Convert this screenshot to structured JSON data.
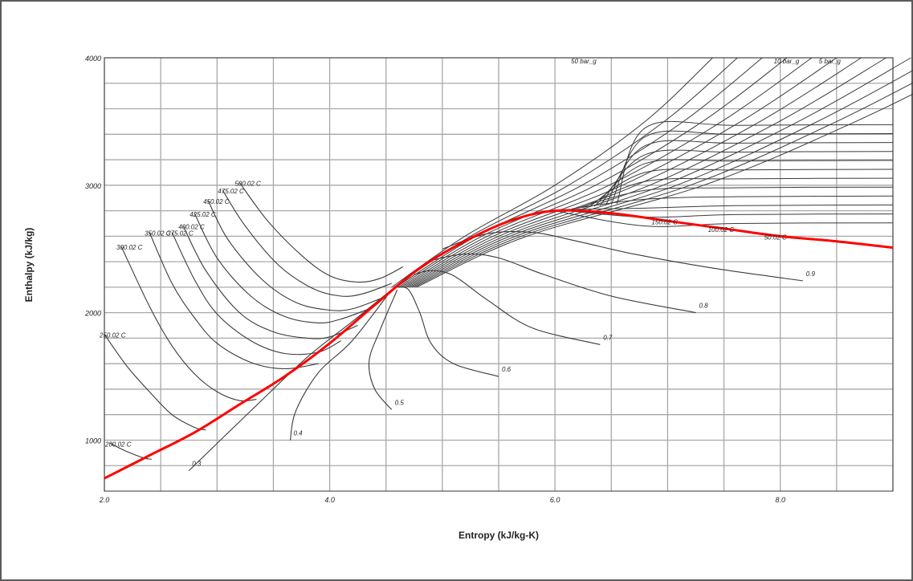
{
  "chart_data": {
    "type": "line",
    "title": "",
    "xlabel": "Entropy (kJ/kg-K)",
    "ylabel": "Enthalpy (kJ/kg)",
    "xlim": [
      2.0,
      9.0
    ],
    "ylim": [
      600,
      4000
    ],
    "xticks": [
      {
        "value": 2.0,
        "label": "2.0"
      },
      {
        "value": 4.0,
        "label": "4.0"
      },
      {
        "value": 6.0,
        "label": "6.0"
      },
      {
        "value": 8.0,
        "label": "8.0"
      }
    ],
    "yticks": [
      {
        "value": 1000,
        "label": "1000"
      },
      {
        "value": 2000,
        "label": "2000"
      },
      {
        "value": 3000,
        "label": "3000"
      },
      {
        "value": 4000,
        "label": "4000"
      }
    ],
    "grid": true,
    "colors": {
      "saturation": "#ff0000",
      "curve": "#3a3a3a",
      "grid": "#a8a8a8"
    },
    "saturation_curve": [
      [
        2.0,
        700
      ],
      [
        2.4,
        880
      ],
      [
        2.8,
        1060
      ],
      [
        3.2,
        1280
      ],
      [
        3.6,
        1500
      ],
      [
        4.0,
        1760
      ],
      [
        4.4,
        2060
      ],
      [
        4.8,
        2350
      ],
      [
        5.2,
        2560
      ],
      [
        5.6,
        2720
      ],
      [
        6.0,
        2800
      ],
      [
        6.5,
        2780
      ],
      [
        7.0,
        2720
      ],
      [
        7.5,
        2660
      ],
      [
        8.0,
        2600
      ],
      [
        8.5,
        2560
      ],
      [
        9.0,
        2510
      ]
    ],
    "isotherms": [
      {
        "label": "200.02 C",
        "points": [
          [
            2.05,
            975
          ],
          [
            2.2,
            910
          ],
          [
            2.35,
            860
          ],
          [
            2.42,
            850
          ]
        ]
      },
      {
        "label": "250.02 C",
        "points": [
          [
            2.0,
            1830
          ],
          [
            2.2,
            1580
          ],
          [
            2.4,
            1380
          ],
          [
            2.6,
            1200
          ],
          [
            2.8,
            1100
          ],
          [
            2.9,
            1080
          ]
        ]
      },
      {
        "label": "300.02 C",
        "points": [
          [
            2.15,
            2520
          ],
          [
            2.4,
            2050
          ],
          [
            2.6,
            1740
          ],
          [
            2.8,
            1520
          ],
          [
            3.0,
            1380
          ],
          [
            3.2,
            1310
          ],
          [
            3.35,
            1320
          ]
        ]
      },
      {
        "label": "350.02 C",
        "points": [
          [
            2.4,
            2630
          ],
          [
            2.6,
            2230
          ],
          [
            2.8,
            1960
          ],
          [
            3.0,
            1760
          ],
          [
            3.3,
            1610
          ],
          [
            3.6,
            1560
          ],
          [
            3.9,
            1600
          ]
        ]
      },
      {
        "label": "375.02 C",
        "points": [
          [
            2.6,
            2630
          ],
          [
            2.8,
            2260
          ],
          [
            3.0,
            1990
          ],
          [
            3.3,
            1780
          ],
          [
            3.6,
            1680
          ],
          [
            3.9,
            1690
          ],
          [
            4.1,
            1780
          ]
        ]
      },
      {
        "label": "400.02 C",
        "points": [
          [
            2.7,
            2680
          ],
          [
            2.9,
            2330
          ],
          [
            3.2,
            2000
          ],
          [
            3.5,
            1850
          ],
          [
            3.8,
            1800
          ],
          [
            4.0,
            1810
          ],
          [
            4.25,
            1900
          ]
        ]
      },
      {
        "label": "425.02 C",
        "points": [
          [
            2.8,
            2780
          ],
          [
            3.0,
            2430
          ],
          [
            3.3,
            2130
          ],
          [
            3.6,
            1970
          ],
          [
            3.9,
            1920
          ],
          [
            4.1,
            1950
          ],
          [
            4.35,
            2030
          ]
        ]
      },
      {
        "label": "450.02 C",
        "points": [
          [
            2.92,
            2880
          ],
          [
            3.1,
            2570
          ],
          [
            3.4,
            2260
          ],
          [
            3.7,
            2080
          ],
          [
            4.0,
            2020
          ],
          [
            4.2,
            2030
          ],
          [
            4.45,
            2110
          ]
        ]
      },
      {
        "label": "475.02 C",
        "points": [
          [
            3.05,
            2960
          ],
          [
            3.25,
            2680
          ],
          [
            3.55,
            2370
          ],
          [
            3.85,
            2190
          ],
          [
            4.1,
            2130
          ],
          [
            4.3,
            2150
          ],
          [
            4.55,
            2230
          ]
        ]
      },
      {
        "label": "500.02 C",
        "points": [
          [
            3.2,
            3020
          ],
          [
            3.45,
            2720
          ],
          [
            3.75,
            2450
          ],
          [
            4.0,
            2290
          ],
          [
            4.25,
            2240
          ],
          [
            4.45,
            2270
          ],
          [
            4.65,
            2360
          ]
        ]
      }
    ],
    "isobar_labels": [
      "50 bar_g",
      "10 bar_g",
      "5 bar_g"
    ],
    "superheat_labels": [
      {
        "label": "150.02 C",
        "points": [
          [
            7.0,
            2720
          ],
          [
            7.5,
            2660
          ]
        ]
      },
      {
        "label": "100.02 C",
        "points": [
          [
            7.5,
            2660
          ],
          [
            8.0,
            2600
          ]
        ]
      },
      {
        "label": "50.02 C",
        "points": [
          [
            8.0,
            2600
          ],
          [
            8.5,
            2560
          ]
        ]
      }
    ],
    "quality_lines": [
      {
        "label": "0.3",
        "points": [
          [
            2.75,
            760
          ],
          [
            3.3,
            1230
          ],
          [
            3.8,
            1650
          ],
          [
            4.2,
            1930
          ],
          [
            4.55,
            2180
          ]
        ]
      },
      {
        "label": "0.4",
        "points": [
          [
            3.65,
            1000
          ],
          [
            3.7,
            1230
          ],
          [
            3.9,
            1530
          ],
          [
            4.2,
            1780
          ],
          [
            4.55,
            2180
          ]
        ]
      },
      {
        "label": "0.5",
        "points": [
          [
            4.55,
            1240
          ],
          [
            4.4,
            1400
          ],
          [
            4.35,
            1620
          ],
          [
            4.45,
            1870
          ],
          [
            4.6,
            2180
          ]
        ]
      },
      {
        "label": "0.6",
        "points": [
          [
            5.5,
            1500
          ],
          [
            5.1,
            1600
          ],
          [
            4.9,
            1760
          ],
          [
            4.8,
            2000
          ],
          [
            4.7,
            2180
          ],
          [
            4.6,
            2200
          ]
        ]
      },
      {
        "label": "0.7",
        "points": [
          [
            6.4,
            1750
          ],
          [
            5.8,
            1880
          ],
          [
            5.4,
            2100
          ],
          [
            5.1,
            2290
          ],
          [
            4.9,
            2330
          ],
          [
            4.75,
            2300
          ]
        ]
      },
      {
        "label": "0.8",
        "points": [
          [
            7.25,
            2000
          ],
          [
            6.5,
            2130
          ],
          [
            5.9,
            2300
          ],
          [
            5.5,
            2430
          ],
          [
            5.2,
            2460
          ],
          [
            4.9,
            2410
          ]
        ]
      },
      {
        "label": "0.9",
        "points": [
          [
            8.2,
            2250
          ],
          [
            7.4,
            2350
          ],
          [
            6.7,
            2460
          ],
          [
            6.2,
            2560
          ],
          [
            5.8,
            2630
          ],
          [
            5.4,
            2620
          ],
          [
            5.0,
            2500
          ]
        ]
      }
    ]
  }
}
